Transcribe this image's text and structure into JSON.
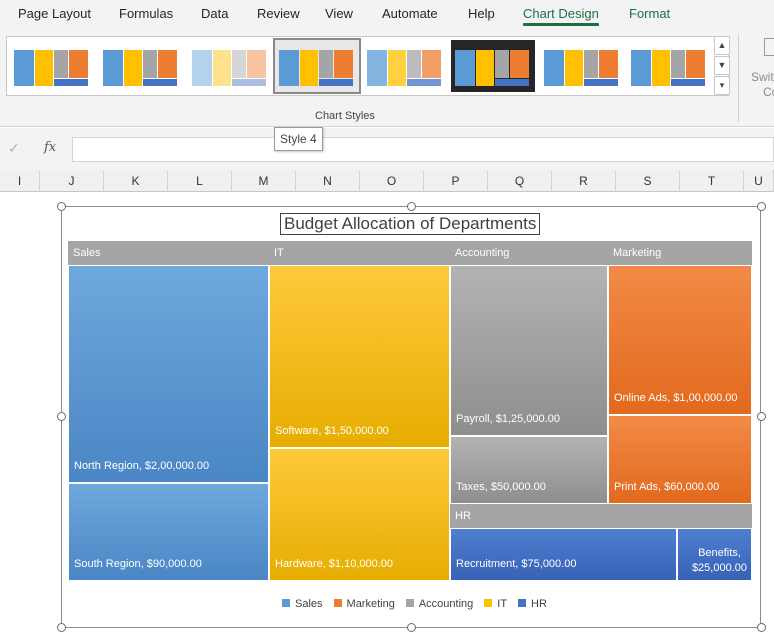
{
  "ribbon_tabs": [
    {
      "label": "Page Layout"
    },
    {
      "label": "Formulas"
    },
    {
      "label": "Data"
    },
    {
      "label": "Review"
    },
    {
      "label": "View"
    },
    {
      "label": "Automate"
    },
    {
      "label": "Help"
    },
    {
      "label": "Chart Design"
    },
    {
      "label": "Format"
    }
  ],
  "active_tab": "Chart Design",
  "ribbon": {
    "group_label": "Chart Styles",
    "switch_label_1": "Swit",
    "switch_label_2": "Co",
    "tooltip": "Style 4"
  },
  "formula_bar": {
    "fx": "fx",
    "check": "✓",
    "value": ""
  },
  "columns": [
    "I",
    "J",
    "K",
    "L",
    "M",
    "N",
    "O",
    "P",
    "Q",
    "R",
    "S",
    "T",
    "U"
  ],
  "chart": {
    "title": "Budget Allocation of Departments",
    "colors": {
      "Sales": "#5b9bd5",
      "Marketing": "#ed7d31",
      "Accounting": "#a5a5a5",
      "IT": "#ffc000",
      "HR": "#4472c4",
      "header": "#a5a5a5"
    }
  },
  "chart_data": {
    "type": "treemap",
    "title": "Budget Allocation of Departments",
    "series": [
      {
        "name": "Sales",
        "children": [
          {
            "name": "North Region",
            "value": 200000,
            "label": "North Region,  $2,00,000.00"
          },
          {
            "name": "South Region",
            "value": 90000,
            "label": "South Region,  $90,000.00"
          }
        ]
      },
      {
        "name": "IT",
        "children": [
          {
            "name": "Software",
            "value": 150000,
            "label": "Software,  $1,50,000.00"
          },
          {
            "name": "Hardware",
            "value": 110000,
            "label": "Hardware,  $1,10,000.00"
          }
        ]
      },
      {
        "name": "Accounting",
        "children": [
          {
            "name": "Payroll",
            "value": 125000,
            "label": "Payroll,  $1,25,000.00"
          },
          {
            "name": "Taxes",
            "value": 50000,
            "label": "Taxes,  $50,000.00"
          }
        ]
      },
      {
        "name": "Marketing",
        "children": [
          {
            "name": "Online Ads",
            "value": 100000,
            "label": "Online Ads,  $1,00,000.00"
          },
          {
            "name": "Print Ads",
            "value": 60000,
            "label": "Print Ads,  $60,000.00"
          }
        ]
      },
      {
        "name": "HR",
        "children": [
          {
            "name": "Recruitment",
            "value": 75000,
            "label": "Recruitment,  $75,000.00"
          },
          {
            "name": "Benefits",
            "value": 25000,
            "label_line1": "Benefits,",
            "label_line2": "$25,000.00"
          }
        ]
      }
    ],
    "legend": [
      "Sales",
      "Marketing",
      "Accounting",
      "IT",
      "HR"
    ],
    "legend_position": "bottom"
  }
}
